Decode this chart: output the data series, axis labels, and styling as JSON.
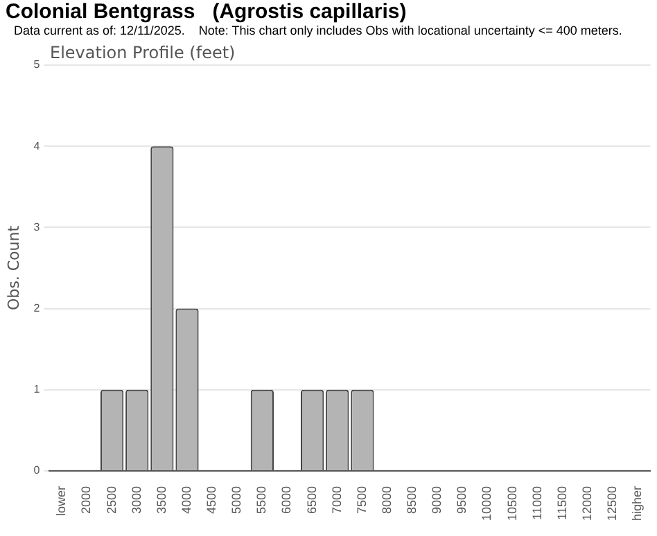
{
  "chart_data": {
    "type": "bar",
    "title": "Colonial Bentgrass   (Agrostis capillaris)",
    "subtitle": "Data current as of: 12/11/2025.    Note: This chart only includes Obs with locational uncertainty <= 400 meters.",
    "annotations": [
      "Elevation Profile (feet)"
    ],
    "ylabel": "Obs. Count",
    "categories": [
      "lower",
      "2000",
      "2500",
      "3000",
      "3500",
      "4000",
      "4500",
      "5000",
      "5500",
      "6000",
      "6500",
      "7000",
      "7500",
      "8000",
      "8500",
      "9000",
      "9500",
      "10000",
      "10500",
      "11000",
      "11500",
      "12000",
      "12500",
      "higher"
    ],
    "values": [
      0,
      0,
      1,
      1,
      4,
      2,
      0,
      0,
      1,
      0,
      1,
      1,
      1,
      0,
      0,
      0,
      0,
      0,
      0,
      0,
      0,
      0,
      0,
      0
    ],
    "color": "#b4b4b4",
    "ylim": [
      0,
      5
    ],
    "yticks": [
      0,
      1,
      2,
      3,
      4,
      5
    ],
    "grid": "y",
    "legend": false
  }
}
